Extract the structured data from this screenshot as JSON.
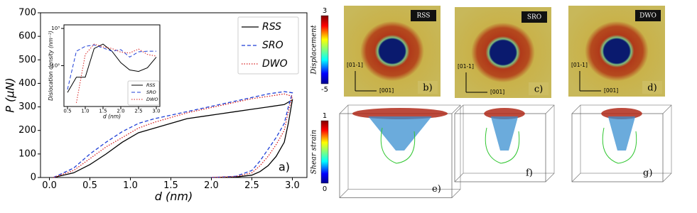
{
  "chart_data": [
    {
      "type": "line",
      "xlabel": "d (nm)",
      "ylabel": "P (μN)",
      "panel_label": "a)",
      "xlim": [
        -0.11,
        3.18
      ],
      "ylim": [
        0,
        700
      ],
      "xticks": [
        {
          "value": 0,
          "label": "0.0"
        },
        {
          "value": 0.5,
          "label": "0.5"
        },
        {
          "value": 1,
          "label": "1.0"
        },
        {
          "value": 1.5,
          "label": "1.5"
        },
        {
          "value": 2,
          "label": "2.0"
        },
        {
          "value": 2.5,
          "label": "2.5"
        },
        {
          "value": 3,
          "label": "3.0"
        }
      ],
      "yticks": [
        0,
        100,
        200,
        300,
        400,
        500,
        600,
        700
      ],
      "legend": "upper right",
      "series": [
        {
          "name": "RSS",
          "color": "#000000",
          "dash": "solid",
          "x": [
            0.05,
            0.3,
            0.5,
            0.7,
            0.9,
            1.1,
            1.3,
            1.5,
            1.7,
            1.9,
            2.1,
            2.3,
            2.5,
            2.7,
            2.9,
            3.0,
            2.95,
            2.9,
            2.8,
            2.7,
            2.6,
            2.5,
            2.3,
            2.0
          ],
          "values": [
            0,
            20,
            55,
            100,
            150,
            190,
            210,
            230,
            250,
            260,
            270,
            280,
            290,
            300,
            310,
            330,
            230,
            150,
            90,
            50,
            25,
            10,
            2,
            0
          ]
        },
        {
          "name": "SRO",
          "color": "#1f3fd6",
          "dash": "dashed",
          "x": [
            0.05,
            0.3,
            0.5,
            0.7,
            0.9,
            1.1,
            1.3,
            1.5,
            1.7,
            1.9,
            2.1,
            2.3,
            2.5,
            2.7,
            2.9,
            3.0,
            2.95,
            2.9,
            2.8,
            2.7,
            2.6,
            2.5,
            2.3,
            2.0
          ],
          "values": [
            0,
            40,
            100,
            150,
            195,
            230,
            250,
            265,
            280,
            295,
            310,
            325,
            340,
            355,
            365,
            360,
            300,
            230,
            170,
            120,
            70,
            30,
            5,
            0
          ]
        },
        {
          "name": "DWO",
          "color": "#d62020",
          "dash": "dotted",
          "x": [
            0.05,
            0.3,
            0.5,
            0.7,
            0.9,
            1.1,
            1.3,
            1.5,
            1.7,
            1.9,
            2.1,
            2.3,
            2.5,
            2.7,
            2.9,
            3.0,
            2.95,
            2.9,
            2.8,
            2.7,
            2.6,
            2.5,
            2.3,
            2.0
          ],
          "values": [
            0,
            30,
            80,
            130,
            170,
            210,
            235,
            255,
            275,
            290,
            305,
            320,
            335,
            345,
            355,
            345,
            280,
            200,
            140,
            90,
            50,
            20,
            4,
            0
          ]
        }
      ]
    },
    {
      "type": "line",
      "xlabel": "d (nm)",
      "ylabel": "Dislocation density (nm⁻²)",
      "log_y": true,
      "xlim": [
        0.4,
        3.1
      ],
      "ylim": [
        8,
        1250
      ],
      "xticks": [
        {
          "value": 0.5,
          "label": "0.5"
        },
        {
          "value": 1,
          "label": "1.0"
        },
        {
          "value": 1.5,
          "label": "1.5"
        },
        {
          "value": 2,
          "label": "2.0"
        },
        {
          "value": 2.5,
          "label": "2.5"
        },
        {
          "value": 3,
          "label": "3.0"
        }
      ],
      "yticks": [
        {
          "value": 100,
          "label": "10²"
        },
        {
          "value": 1000,
          "label": "10³"
        }
      ],
      "legend": "lower right",
      "series": [
        {
          "name": "RSS",
          "color": "#000000",
          "dash": "solid",
          "x": [
            0.5,
            0.75,
            1.0,
            1.25,
            1.5,
            1.75,
            2.0,
            2.25,
            2.5,
            2.75,
            3.0
          ],
          "values": [
            19,
            49,
            49,
            290,
            380,
            245,
            120,
            77,
            70,
            88,
            170
          ]
        },
        {
          "name": "SRO",
          "color": "#1f3fd6",
          "dash": "dashed",
          "x": [
            0.5,
            0.75,
            1.0,
            1.25,
            1.5,
            1.75,
            2.0,
            2.25,
            2.5,
            2.75,
            3.0
          ],
          "values": [
            23,
            245,
            330,
            360,
            300,
            245,
            270,
            170,
            235,
            245,
            245
          ]
        },
        {
          "name": "DWO",
          "color": "#d62020",
          "dash": "dotted",
          "x": [
            0.5,
            0.75,
            1.0,
            1.25,
            1.5,
            1.75,
            2.0,
            2.25,
            2.5,
            2.75,
            3.0
          ],
          "values": [
            null,
            10,
            200,
            380,
            320,
            290,
            230,
            220,
            280,
            200,
            180
          ]
        }
      ]
    }
  ],
  "panels": {
    "displacement_bar": {
      "label": "Displacement",
      "max": "3",
      "min": "-5"
    },
    "shear_bar": {
      "label": "Shear strain",
      "max": "1",
      "min": "0"
    },
    "maps": [
      {
        "tag": "RSS",
        "label": "b)",
        "axis_y": "[01-1]",
        "axis_x": "[001]"
      },
      {
        "tag": "SRO",
        "label": "c)",
        "axis_y": "[01-1]",
        "axis_x": "[001]"
      },
      {
        "tag": "DWO",
        "label": "d)",
        "axis_y": "[01-1]",
        "axis_x": "[001]"
      }
    ],
    "cubes": [
      {
        "label": "e)"
      },
      {
        "label": "f)"
      },
      {
        "label": "g)"
      }
    ]
  }
}
